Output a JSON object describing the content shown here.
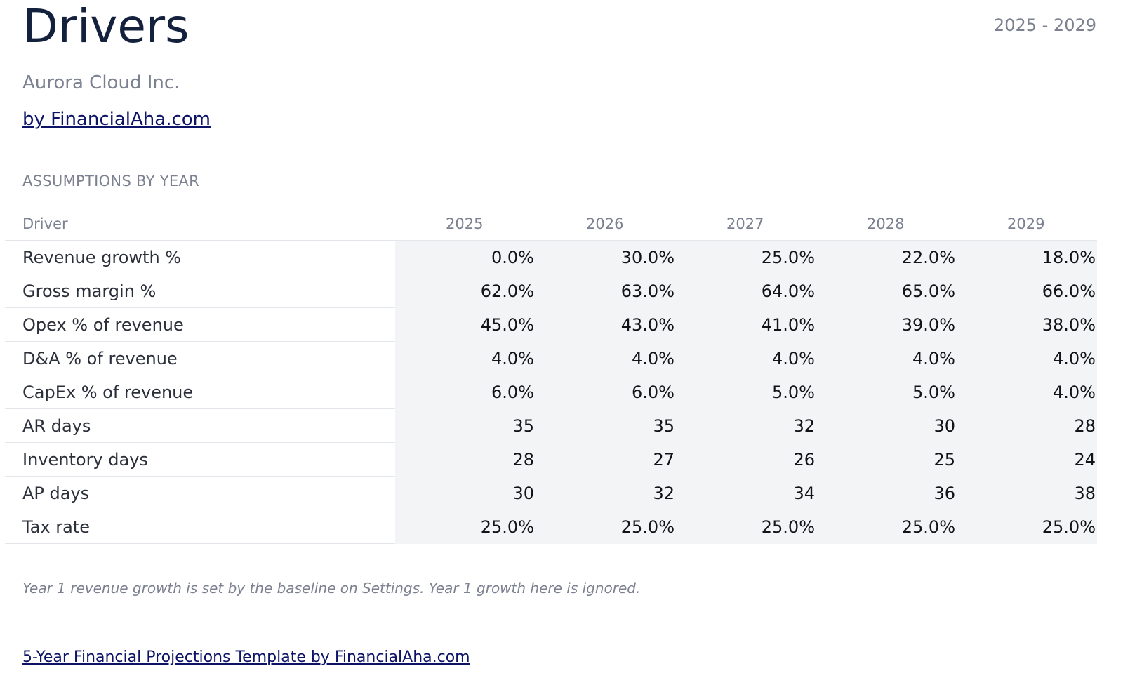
{
  "header": {
    "title": "Drivers",
    "period": "2025 - 2029",
    "company": "Aurora Cloud Inc.",
    "byline": "by FinancialAha.com"
  },
  "section": {
    "label": "ASSUMPTIONS BY YEAR"
  },
  "table": {
    "driver_header": "Driver",
    "years": [
      "2025",
      "2026",
      "2027",
      "2028",
      "2029"
    ],
    "rows": [
      {
        "label": "Revenue growth %",
        "values": [
          "0.0%",
          "30.0%",
          "25.0%",
          "22.0%",
          "18.0%"
        ]
      },
      {
        "label": "Gross margin %",
        "values": [
          "62.0%",
          "63.0%",
          "64.0%",
          "65.0%",
          "66.0%"
        ]
      },
      {
        "label": "Opex % of revenue",
        "values": [
          "45.0%",
          "43.0%",
          "41.0%",
          "39.0%",
          "38.0%"
        ]
      },
      {
        "label": "D&A % of revenue",
        "values": [
          "4.0%",
          "4.0%",
          "4.0%",
          "4.0%",
          "4.0%"
        ]
      },
      {
        "label": "CapEx % of revenue",
        "values": [
          "6.0%",
          "6.0%",
          "5.0%",
          "5.0%",
          "4.0%"
        ]
      },
      {
        "label": "AR days",
        "values": [
          "35",
          "35",
          "32",
          "30",
          "28"
        ]
      },
      {
        "label": "Inventory days",
        "values": [
          "28",
          "27",
          "26",
          "25",
          "24"
        ]
      },
      {
        "label": "AP days",
        "values": [
          "30",
          "32",
          "34",
          "36",
          "38"
        ]
      },
      {
        "label": "Tax rate",
        "values": [
          "25.0%",
          "25.0%",
          "25.0%",
          "25.0%",
          "25.0%"
        ]
      }
    ]
  },
  "note": "Year 1 revenue growth is set by the baseline on Settings. Year 1 growth here is ignored.",
  "footer": {
    "link_text": "5-Year Financial Projections Template by FinancialAha.com"
  }
}
